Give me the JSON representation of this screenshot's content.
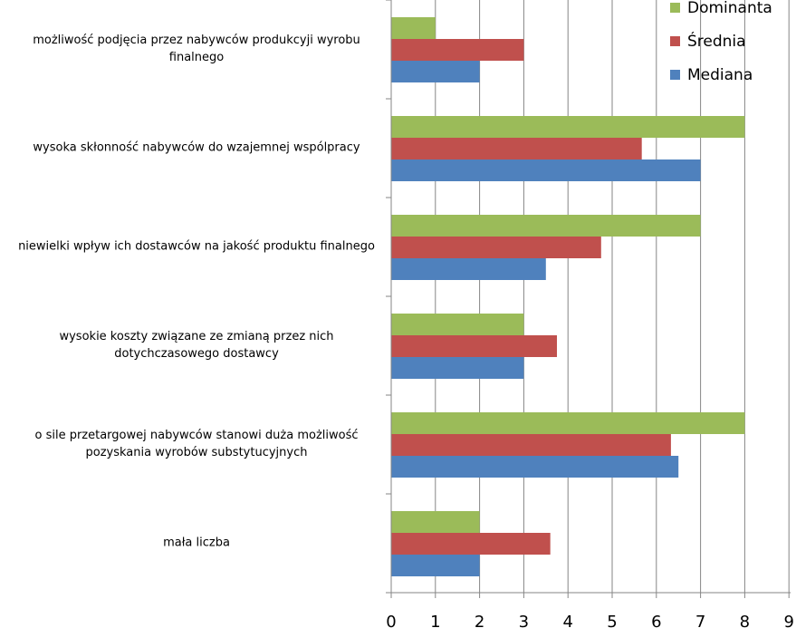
{
  "chart_data": {
    "type": "bar",
    "orientation": "horizontal",
    "categories": [
      [
        "możliwość podjęcia przez nabywców produkcyji wyrobu",
        "finalnego"
      ],
      [
        "wysoka skłonność nabywców do wzajemnej wspólpracy"
      ],
      [
        "niewielki wpływ ich dostawców na jakość produktu finalnego"
      ],
      [
        "wysokie koszty związane ze zmianą przez nich",
        "dotychczasowego dostawcy"
      ],
      [
        "o sile przetargowej nabywców stanowi duża możliwość",
        "pozyskania wyrobów substytucyjnych"
      ],
      [
        "mała liczba"
      ]
    ],
    "series": [
      {
        "name": "Dominanta",
        "color": "#9BBB59",
        "values": [
          1,
          8,
          7,
          3,
          8,
          2
        ]
      },
      {
        "name": "Średnia",
        "color": "#C0504D",
        "values": [
          3,
          5.67,
          4.75,
          3.75,
          6.33,
          3.6
        ]
      },
      {
        "name": "Mediana",
        "color": "#4F81BD",
        "values": [
          2,
          7,
          3.5,
          3,
          6.5,
          2
        ]
      }
    ],
    "xlim": [
      0,
      9
    ],
    "x_ticks": [
      "0",
      "1",
      "2",
      "3",
      "4",
      "5",
      "6",
      "7",
      "8",
      "9"
    ],
    "grid": true,
    "legend": "top-right"
  }
}
